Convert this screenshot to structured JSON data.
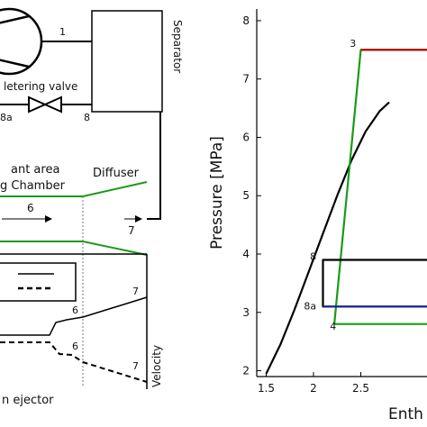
{
  "left_schematic": {
    "labels": {
      "separator": "Separator",
      "metering_valve": "Metering valve",
      "metering_valve_visible": "letering valve",
      "motive_area": "ant area",
      "mixing_chamber": "g Chamber",
      "diffuser": "Diffuser",
      "caption": "n ejector",
      "velocity_axis": "Velocity",
      "state_1": "1",
      "state_8": "8",
      "state_8a": "8a",
      "state_6_flow": "6",
      "state_7_flow": "7",
      "state_6_upper": "6",
      "state_7_upper": "7",
      "state_6_lower": "6",
      "state_7_lower": "7"
    }
  },
  "chart_data": {
    "type": "line",
    "xlabel": "Enth",
    "ylabel": "Pressure [MPa]",
    "xlim": [
      1.4,
      3.2
    ],
    "ylim": [
      1.9,
      8.2
    ],
    "x_ticks": [
      "1.5",
      "2",
      "2.5"
    ],
    "y_ticks": [
      "2",
      "3",
      "4",
      "5",
      "6",
      "7",
      "8"
    ],
    "point_labels": [
      {
        "text": "3",
        "x": 2.45,
        "y": 7.55
      },
      {
        "text": "8",
        "x": 2.03,
        "y": 3.9
      },
      {
        "text": "8a",
        "x": 2.03,
        "y": 3.05
      },
      {
        "text": "4",
        "x": 2.24,
        "y": 2.7
      }
    ],
    "series": [
      {
        "color": "#000000",
        "values": [
          [
            1.5,
            1.95
          ],
          [
            1.65,
            2.45
          ],
          [
            1.8,
            3.05
          ],
          [
            1.95,
            3.7
          ],
          [
            2.1,
            4.35
          ],
          [
            2.25,
            5.0
          ],
          [
            2.4,
            5.6
          ],
          [
            2.55,
            6.1
          ],
          [
            2.7,
            6.45
          ],
          [
            2.8,
            6.6
          ]
        ]
      },
      {
        "color": "#1a9a1a",
        "values": [
          [
            2.22,
            2.8
          ],
          [
            2.5,
            7.5
          ],
          [
            3.2,
            7.5
          ]
        ]
      },
      {
        "color": "#1a9a1a",
        "values": [
          [
            2.22,
            2.8
          ],
          [
            3.2,
            2.8
          ]
        ]
      },
      {
        "color": "#c00000",
        "values": [
          [
            2.5,
            7.5
          ],
          [
            3.2,
            7.5
          ]
        ]
      },
      {
        "color": "#000000",
        "values": [
          [
            3.2,
            3.9
          ],
          [
            2.1,
            3.9
          ],
          [
            2.1,
            3.1
          ],
          [
            3.2,
            3.1
          ]
        ]
      },
      {
        "color": "#1a2a9a",
        "values": [
          [
            2.1,
            3.1
          ],
          [
            3.2,
            3.1
          ]
        ]
      }
    ]
  }
}
